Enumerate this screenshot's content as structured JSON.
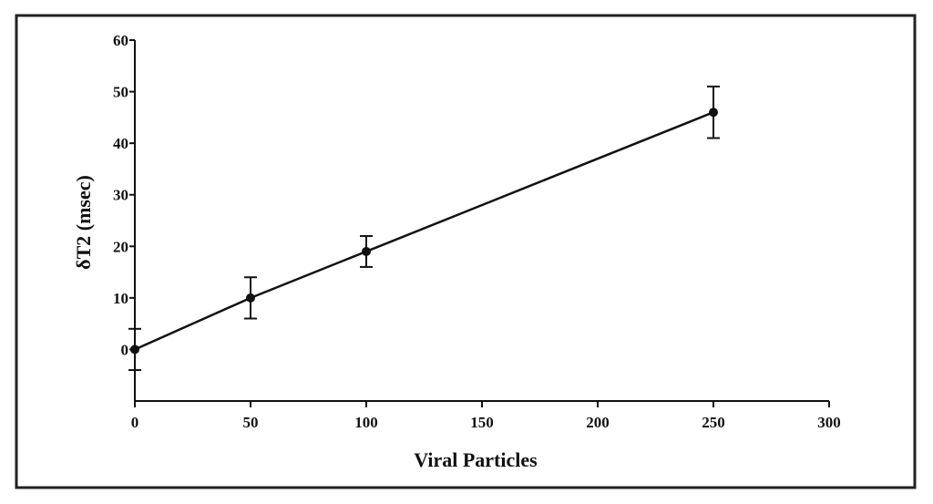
{
  "chart_data": {
    "type": "line",
    "title": "",
    "xlabel": "Viral Particles",
    "ylabel": "δT2 (msec)",
    "xlim": [
      0,
      300
    ],
    "ylim": [
      -10,
      60
    ],
    "x_ticks": [
      0,
      50,
      100,
      150,
      200,
      250,
      300
    ],
    "y_ticks": [
      0,
      10,
      20,
      30,
      40,
      50,
      60
    ],
    "x_tick_labels": [
      "0",
      "50",
      "100",
      "150",
      "200",
      "250",
      "300"
    ],
    "y_tick_labels": [
      "0",
      "10",
      "20",
      "30",
      "40",
      "50",
      "60"
    ],
    "grid": false,
    "legend": "none",
    "series": [
      {
        "x": [
          0,
          50,
          100,
          250
        ],
        "y": [
          0,
          10,
          19,
          46
        ],
        "error": [
          4,
          4,
          3,
          5
        ],
        "marker": "circle",
        "color": "#111111"
      }
    ]
  }
}
